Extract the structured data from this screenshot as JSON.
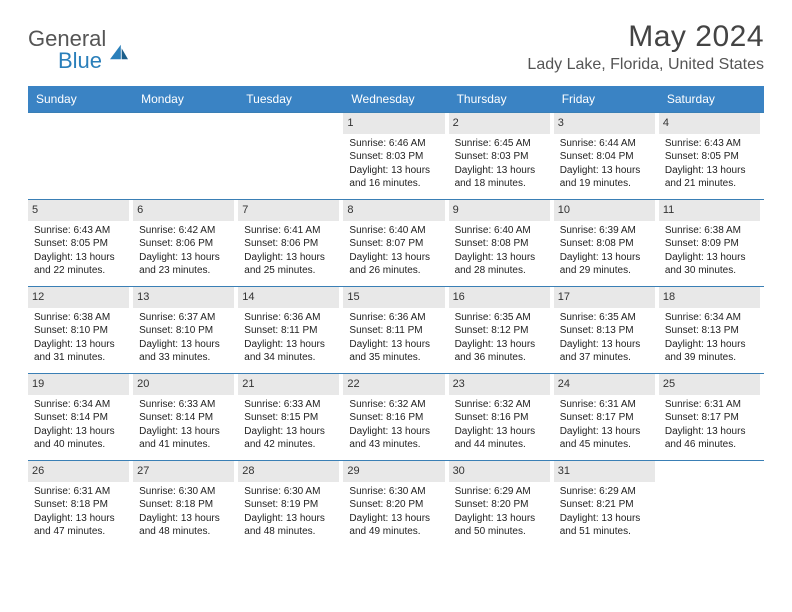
{
  "brand": {
    "word1": "General",
    "word2": "Blue"
  },
  "title": "May 2024",
  "location": "Lady Lake, Florida, United States",
  "colors": {
    "header_bg": "#3a83c4",
    "daynum_bg": "#e8e8e8",
    "border": "#3a7fb5",
    "logo_blue": "#2a7fba",
    "text": "#222222"
  },
  "day_names": [
    "Sunday",
    "Monday",
    "Tuesday",
    "Wednesday",
    "Thursday",
    "Friday",
    "Saturday"
  ],
  "weeks": [
    [
      {
        "n": "",
        "t": ""
      },
      {
        "n": "",
        "t": ""
      },
      {
        "n": "",
        "t": ""
      },
      {
        "n": "1",
        "t": "Sunrise: 6:46 AM\nSunset: 8:03 PM\nDaylight: 13 hours and 16 minutes."
      },
      {
        "n": "2",
        "t": "Sunrise: 6:45 AM\nSunset: 8:03 PM\nDaylight: 13 hours and 18 minutes."
      },
      {
        "n": "3",
        "t": "Sunrise: 6:44 AM\nSunset: 8:04 PM\nDaylight: 13 hours and 19 minutes."
      },
      {
        "n": "4",
        "t": "Sunrise: 6:43 AM\nSunset: 8:05 PM\nDaylight: 13 hours and 21 minutes."
      }
    ],
    [
      {
        "n": "5",
        "t": "Sunrise: 6:43 AM\nSunset: 8:05 PM\nDaylight: 13 hours and 22 minutes."
      },
      {
        "n": "6",
        "t": "Sunrise: 6:42 AM\nSunset: 8:06 PM\nDaylight: 13 hours and 23 minutes."
      },
      {
        "n": "7",
        "t": "Sunrise: 6:41 AM\nSunset: 8:06 PM\nDaylight: 13 hours and 25 minutes."
      },
      {
        "n": "8",
        "t": "Sunrise: 6:40 AM\nSunset: 8:07 PM\nDaylight: 13 hours and 26 minutes."
      },
      {
        "n": "9",
        "t": "Sunrise: 6:40 AM\nSunset: 8:08 PM\nDaylight: 13 hours and 28 minutes."
      },
      {
        "n": "10",
        "t": "Sunrise: 6:39 AM\nSunset: 8:08 PM\nDaylight: 13 hours and 29 minutes."
      },
      {
        "n": "11",
        "t": "Sunrise: 6:38 AM\nSunset: 8:09 PM\nDaylight: 13 hours and 30 minutes."
      }
    ],
    [
      {
        "n": "12",
        "t": "Sunrise: 6:38 AM\nSunset: 8:10 PM\nDaylight: 13 hours and 31 minutes."
      },
      {
        "n": "13",
        "t": "Sunrise: 6:37 AM\nSunset: 8:10 PM\nDaylight: 13 hours and 33 minutes."
      },
      {
        "n": "14",
        "t": "Sunrise: 6:36 AM\nSunset: 8:11 PM\nDaylight: 13 hours and 34 minutes."
      },
      {
        "n": "15",
        "t": "Sunrise: 6:36 AM\nSunset: 8:11 PM\nDaylight: 13 hours and 35 minutes."
      },
      {
        "n": "16",
        "t": "Sunrise: 6:35 AM\nSunset: 8:12 PM\nDaylight: 13 hours and 36 minutes."
      },
      {
        "n": "17",
        "t": "Sunrise: 6:35 AM\nSunset: 8:13 PM\nDaylight: 13 hours and 37 minutes."
      },
      {
        "n": "18",
        "t": "Sunrise: 6:34 AM\nSunset: 8:13 PM\nDaylight: 13 hours and 39 minutes."
      }
    ],
    [
      {
        "n": "19",
        "t": "Sunrise: 6:34 AM\nSunset: 8:14 PM\nDaylight: 13 hours and 40 minutes."
      },
      {
        "n": "20",
        "t": "Sunrise: 6:33 AM\nSunset: 8:14 PM\nDaylight: 13 hours and 41 minutes."
      },
      {
        "n": "21",
        "t": "Sunrise: 6:33 AM\nSunset: 8:15 PM\nDaylight: 13 hours and 42 minutes."
      },
      {
        "n": "22",
        "t": "Sunrise: 6:32 AM\nSunset: 8:16 PM\nDaylight: 13 hours and 43 minutes."
      },
      {
        "n": "23",
        "t": "Sunrise: 6:32 AM\nSunset: 8:16 PM\nDaylight: 13 hours and 44 minutes."
      },
      {
        "n": "24",
        "t": "Sunrise: 6:31 AM\nSunset: 8:17 PM\nDaylight: 13 hours and 45 minutes."
      },
      {
        "n": "25",
        "t": "Sunrise: 6:31 AM\nSunset: 8:17 PM\nDaylight: 13 hours and 46 minutes."
      }
    ],
    [
      {
        "n": "26",
        "t": "Sunrise: 6:31 AM\nSunset: 8:18 PM\nDaylight: 13 hours and 47 minutes."
      },
      {
        "n": "27",
        "t": "Sunrise: 6:30 AM\nSunset: 8:18 PM\nDaylight: 13 hours and 48 minutes."
      },
      {
        "n": "28",
        "t": "Sunrise: 6:30 AM\nSunset: 8:19 PM\nDaylight: 13 hours and 48 minutes."
      },
      {
        "n": "29",
        "t": "Sunrise: 6:30 AM\nSunset: 8:20 PM\nDaylight: 13 hours and 49 minutes."
      },
      {
        "n": "30",
        "t": "Sunrise: 6:29 AM\nSunset: 8:20 PM\nDaylight: 13 hours and 50 minutes."
      },
      {
        "n": "31",
        "t": "Sunrise: 6:29 AM\nSunset: 8:21 PM\nDaylight: 13 hours and 51 minutes."
      },
      {
        "n": "",
        "t": ""
      }
    ]
  ]
}
